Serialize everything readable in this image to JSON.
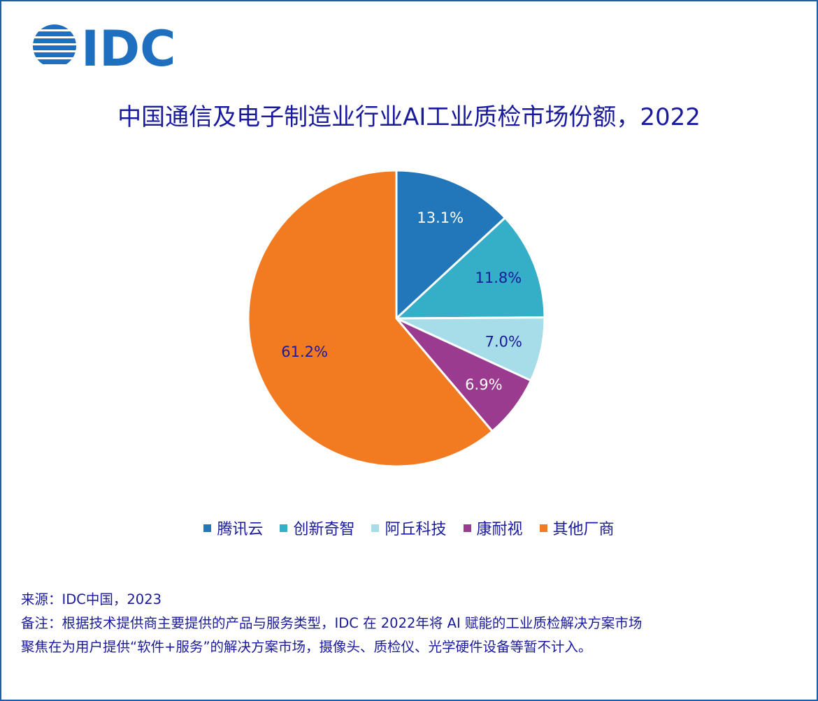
{
  "brand": {
    "logo_text": "IDC",
    "color": "#1e6fbf"
  },
  "chart_data": {
    "type": "pie",
    "title": "中国通信及电子制造业行业AI工业质检市场份额，2022",
    "categories": [
      "腾讯云",
      "创新奇智",
      "阿丘科技",
      "康耐视",
      "其他厂商"
    ],
    "values": [
      13.1,
      11.8,
      7.0,
      6.9,
      61.2
    ],
    "labels": [
      "13.1%",
      "11.8%",
      "7.0%",
      "6.9%",
      "61.2%"
    ],
    "colors": [
      "#2277bb",
      "#35aec8",
      "#a6dde8",
      "#9b3b8f",
      "#f27a21"
    ],
    "label_colors": [
      "#ffffff",
      "#1a1a9c",
      "#1a1a9c",
      "#ffffff",
      "#1a1a9c"
    ],
    "start": "12 o'clock",
    "direction": "clockwise",
    "legend_position": "bottom"
  },
  "footer": {
    "source": "来源：IDC中国，2023",
    "note_line1": "备注：根据技术提供商主要提供的产品与服务类型，IDC 在 2022年将 AI 赋能的工业质检解决方案市场",
    "note_line2": "聚焦在为用户提供“软件+服务”的解决方案市场，摄像头、质检仪、光学硬件设备等暂不计入。"
  }
}
